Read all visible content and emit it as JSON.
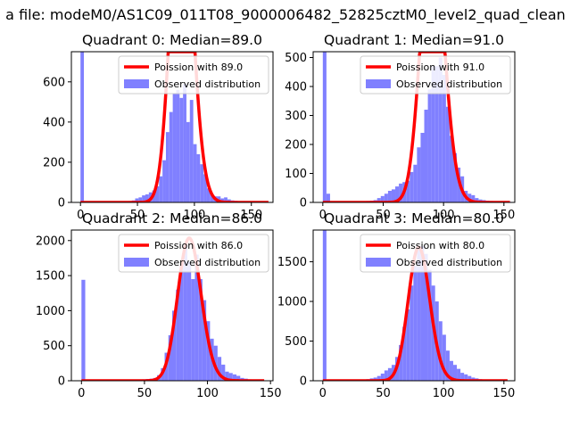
{
  "figure_title": "a file: modeM0/AS1C09_011T08_9000006482_52825cztM0_level2_quad_clean",
  "chart_data": [
    {
      "type": "histogram",
      "title": "Quadrant 0: Median=89.0",
      "xlim": [
        -8,
        169
      ],
      "ylim": [
        0,
        750
      ],
      "xticks": [
        0,
        50,
        100,
        150
      ],
      "yticks": [
        0,
        200,
        400,
        600
      ],
      "bin_width": 3,
      "bins": [
        [
          0,
          750
        ],
        [
          3,
          5
        ],
        [
          6,
          3
        ],
        [
          9,
          3
        ],
        [
          12,
          3
        ],
        [
          15,
          3
        ],
        [
          18,
          3
        ],
        [
          21,
          3
        ],
        [
          24,
          3
        ],
        [
          27,
          3
        ],
        [
          30,
          3
        ],
        [
          33,
          4
        ],
        [
          36,
          5
        ],
        [
          39,
          6
        ],
        [
          42,
          7
        ],
        [
          45,
          10
        ],
        [
          48,
          20
        ],
        [
          51,
          25
        ],
        [
          54,
          35
        ],
        [
          57,
          40
        ],
        [
          60,
          50
        ],
        [
          63,
          60
        ],
        [
          66,
          80
        ],
        [
          69,
          130
        ],
        [
          72,
          210
        ],
        [
          75,
          350
        ],
        [
          78,
          450
        ],
        [
          81,
          540
        ],
        [
          84,
          560
        ],
        [
          87,
          520
        ],
        [
          90,
          590
        ],
        [
          93,
          400
        ],
        [
          96,
          510
        ],
        [
          99,
          290
        ],
        [
          102,
          240
        ],
        [
          105,
          190
        ],
        [
          108,
          140
        ],
        [
          111,
          70
        ],
        [
          114,
          40
        ],
        [
          117,
          30
        ],
        [
          120,
          30
        ],
        [
          123,
          20
        ],
        [
          126,
          25
        ],
        [
          129,
          15
        ],
        [
          132,
          10
        ],
        [
          135,
          8
        ],
        [
          138,
          6
        ],
        [
          141,
          5
        ],
        [
          144,
          4
        ],
        [
          147,
          3
        ],
        [
          150,
          3
        ],
        [
          153,
          2
        ],
        [
          156,
          2
        ],
        [
          159,
          2
        ],
        [
          162,
          2
        ]
      ],
      "poisson_mean": 89.0,
      "poisson_scale": 38500,
      "curve_x_range": [
        0,
        165
      ],
      "legend": {
        "line": "Poission with 89.0",
        "bars": "Observed distribution"
      }
    },
    {
      "type": "histogram",
      "title": "Quadrant 1: Median=91.0",
      "xlim": [
        -8,
        159
      ],
      "ylim": [
        0,
        520
      ],
      "xticks": [
        0,
        50,
        100,
        150
      ],
      "yticks": [
        0,
        100,
        200,
        300,
        400,
        500
      ],
      "bin_width": 3,
      "bins": [
        [
          0,
          520
        ],
        [
          3,
          30
        ],
        [
          6,
          3
        ],
        [
          9,
          3
        ],
        [
          12,
          3
        ],
        [
          15,
          3
        ],
        [
          18,
          3
        ],
        [
          21,
          3
        ],
        [
          24,
          3
        ],
        [
          27,
          3
        ],
        [
          30,
          3
        ],
        [
          33,
          4
        ],
        [
          36,
          5
        ],
        [
          39,
          6
        ],
        [
          42,
          8
        ],
        [
          45,
          15
        ],
        [
          48,
          22
        ],
        [
          51,
          30
        ],
        [
          54,
          40
        ],
        [
          57,
          45
        ],
        [
          60,
          55
        ],
        [
          63,
          65
        ],
        [
          66,
          70
        ],
        [
          69,
          75
        ],
        [
          72,
          105
        ],
        [
          75,
          130
        ],
        [
          78,
          190
        ],
        [
          81,
          240
        ],
        [
          84,
          320
        ],
        [
          87,
          390
        ],
        [
          90,
          470
        ],
        [
          93,
          470
        ],
        [
          96,
          500
        ],
        [
          99,
          440
        ],
        [
          102,
          330
        ],
        [
          105,
          230
        ],
        [
          108,
          170
        ],
        [
          111,
          120
        ],
        [
          114,
          90
        ],
        [
          117,
          40
        ],
        [
          120,
          30
        ],
        [
          123,
          25
        ],
        [
          126,
          15
        ],
        [
          129,
          10
        ],
        [
          132,
          8
        ],
        [
          135,
          6
        ],
        [
          138,
          5
        ],
        [
          141,
          4
        ],
        [
          144,
          3
        ],
        [
          147,
          3
        ],
        [
          150,
          3
        ],
        [
          153,
          2
        ]
      ],
      "poisson_mean": 91.0,
      "poisson_scale": 22800,
      "curve_x_range": [
        0,
        155
      ],
      "legend": {
        "line": "Poission with 91.0",
        "bars": "Observed distribution"
      }
    },
    {
      "type": "histogram",
      "title": "Quadrant 2: Median=86.0",
      "xlim": [
        -8,
        152
      ],
      "ylim": [
        0,
        2150
      ],
      "xticks": [
        0,
        50,
        100,
        150
      ],
      "yticks": [
        0,
        500,
        1000,
        1500,
        2000
      ],
      "bin_width": 3,
      "bins": [
        [
          0,
          1440
        ],
        [
          3,
          10
        ],
        [
          6,
          5
        ],
        [
          9,
          5
        ],
        [
          12,
          5
        ],
        [
          15,
          5
        ],
        [
          18,
          5
        ],
        [
          21,
          5
        ],
        [
          24,
          5
        ],
        [
          27,
          5
        ],
        [
          30,
          5
        ],
        [
          33,
          6
        ],
        [
          36,
          8
        ],
        [
          39,
          10
        ],
        [
          42,
          12
        ],
        [
          45,
          15
        ],
        [
          48,
          20
        ],
        [
          51,
          25
        ],
        [
          54,
          30
        ],
        [
          57,
          40
        ],
        [
          60,
          80
        ],
        [
          63,
          180
        ],
        [
          66,
          400
        ],
        [
          69,
          650
        ],
        [
          72,
          1000
        ],
        [
          75,
          1300
        ],
        [
          78,
          1650
        ],
        [
          81,
          1950
        ],
        [
          84,
          1700
        ],
        [
          87,
          1450
        ],
        [
          90,
          1800
        ],
        [
          93,
          1450
        ],
        [
          96,
          1150
        ],
        [
          99,
          850
        ],
        [
          102,
          600
        ],
        [
          105,
          500
        ],
        [
          108,
          340
        ],
        [
          111,
          230
        ],
        [
          114,
          130
        ],
        [
          117,
          110
        ],
        [
          120,
          90
        ],
        [
          123,
          70
        ],
        [
          126,
          40
        ],
        [
          129,
          30
        ],
        [
          132,
          20
        ],
        [
          135,
          15
        ],
        [
          138,
          10
        ],
        [
          141,
          8
        ],
        [
          144,
          5
        ]
      ],
      "poisson_mean": 86.0,
      "poisson_scale": 47300,
      "curve_x_range": [
        0,
        145
      ],
      "legend": {
        "line": "Poission with 86.0",
        "bars": "Observed distribution"
      }
    },
    {
      "type": "histogram",
      "title": "Quadrant 3: Median=80.0",
      "xlim": [
        -8,
        159
      ],
      "ylim": [
        0,
        1900
      ],
      "xticks": [
        0,
        50,
        100,
        150
      ],
      "yticks": [
        0,
        500,
        1000,
        1500
      ],
      "bin_width": 3,
      "bins": [
        [
          0,
          1900
        ],
        [
          3,
          5
        ],
        [
          6,
          5
        ],
        [
          9,
          5
        ],
        [
          12,
          5
        ],
        [
          15,
          5
        ],
        [
          18,
          5
        ],
        [
          21,
          5
        ],
        [
          24,
          5
        ],
        [
          27,
          8
        ],
        [
          30,
          10
        ],
        [
          33,
          15
        ],
        [
          36,
          20
        ],
        [
          39,
          30
        ],
        [
          42,
          40
        ],
        [
          45,
          60
        ],
        [
          48,
          90
        ],
        [
          51,
          130
        ],
        [
          54,
          160
        ],
        [
          57,
          200
        ],
        [
          60,
          300
        ],
        [
          63,
          450
        ],
        [
          66,
          680
        ],
        [
          69,
          900
        ],
        [
          72,
          1200
        ],
        [
          75,
          1450
        ],
        [
          78,
          1650
        ],
        [
          81,
          1700
        ],
        [
          84,
          1600
        ],
        [
          87,
          1400
        ],
        [
          90,
          1200
        ],
        [
          93,
          1000
        ],
        [
          96,
          750
        ],
        [
          99,
          580
        ],
        [
          102,
          380
        ],
        [
          105,
          250
        ],
        [
          108,
          200
        ],
        [
          111,
          150
        ],
        [
          114,
          100
        ],
        [
          117,
          80
        ],
        [
          120,
          60
        ],
        [
          123,
          40
        ],
        [
          126,
          30
        ],
        [
          129,
          20
        ],
        [
          132,
          15
        ],
        [
          135,
          10
        ],
        [
          138,
          8
        ],
        [
          141,
          6
        ],
        [
          144,
          5
        ],
        [
          147,
          5
        ],
        [
          150,
          4
        ]
      ],
      "poisson_mean": 80.0,
      "poisson_scale": 37700,
      "curve_x_range": [
        0,
        153
      ],
      "legend": {
        "line": "Poission with 80.0",
        "bars": "Observed distribution"
      }
    }
  ]
}
